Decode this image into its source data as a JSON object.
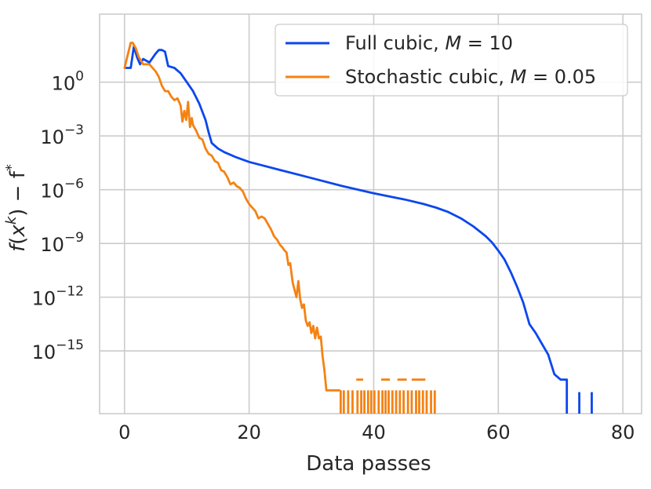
{
  "chart_data": {
    "type": "line",
    "title": "",
    "xlabel": "Data passes",
    "ylabel_parts": {
      "f": "f",
      "x": "x",
      "k": "k",
      "rest": "− f",
      "star": "*"
    },
    "xlim": [
      -4,
      83
    ],
    "ylim_log10": [
      -18.5,
      3.8
    ],
    "y_scale": "log",
    "grid": true,
    "legend_position": "top-right",
    "x_ticks": [
      {
        "value": 0,
        "label": "0"
      },
      {
        "value": 20,
        "label": "20"
      },
      {
        "value": 40,
        "label": "40"
      },
      {
        "value": 60,
        "label": "60"
      },
      {
        "value": 80,
        "label": "80"
      }
    ],
    "y_ticks": [
      {
        "exp": 0,
        "base": "10",
        "power": "0"
      },
      {
        "exp": -3,
        "base": "10",
        "power": "−3"
      },
      {
        "exp": -6,
        "base": "10",
        "power": "−6"
      },
      {
        "exp": -9,
        "base": "10",
        "power": "−9"
      },
      {
        "exp": -12,
        "base": "10",
        "power": "−12"
      },
      {
        "exp": -15,
        "base": "10",
        "power": "−15"
      }
    ],
    "series": [
      {
        "name": "Full cubic",
        "param": "M",
        "param_value": "10",
        "color": "#0b47ee",
        "points_log10": [
          [
            0.2,
            0.8
          ],
          [
            1.0,
            0.8
          ],
          [
            1.5,
            2.0
          ],
          [
            2.0,
            1.4
          ],
          [
            2.5,
            1.0
          ],
          [
            3.0,
            1.3
          ],
          [
            4.0,
            1.1
          ],
          [
            5.0,
            1.6
          ],
          [
            5.5,
            1.8
          ],
          [
            6.0,
            1.8
          ],
          [
            6.5,
            1.7
          ],
          [
            7.0,
            0.9
          ],
          [
            8.0,
            0.8
          ],
          [
            9.0,
            0.5
          ],
          [
            10.0,
            0.0
          ],
          [
            11.0,
            -0.5
          ],
          [
            12.0,
            -1.2
          ],
          [
            13.0,
            -2.1
          ],
          [
            13.5,
            -2.8
          ],
          [
            14.0,
            -3.4
          ],
          [
            15.0,
            -3.7
          ],
          [
            16.0,
            -3.9
          ],
          [
            18.0,
            -4.2
          ],
          [
            20.0,
            -4.45
          ],
          [
            25.0,
            -4.9
          ],
          [
            30.0,
            -5.35
          ],
          [
            35.0,
            -5.8
          ],
          [
            40.0,
            -6.2
          ],
          [
            45.0,
            -6.55
          ],
          [
            48.0,
            -6.8
          ],
          [
            50.0,
            -7.0
          ],
          [
            52.0,
            -7.25
          ],
          [
            54.0,
            -7.6
          ],
          [
            56.0,
            -8.05
          ],
          [
            58.0,
            -8.6
          ],
          [
            59.0,
            -8.95
          ],
          [
            60.0,
            -9.4
          ],
          [
            61.0,
            -9.9
          ],
          [
            62.0,
            -10.6
          ],
          [
            63.0,
            -11.4
          ],
          [
            64.0,
            -12.3
          ],
          [
            65.0,
            -13.5
          ],
          [
            66.0,
            -14.0
          ],
          [
            67.0,
            -14.6
          ],
          [
            68.0,
            -15.2
          ],
          [
            69.0,
            -16.3
          ],
          [
            70.0,
            -16.6
          ],
          [
            71.0,
            -16.6
          ]
        ],
        "drops": [
          [
            71.0,
            -16.6
          ],
          [
            73.0,
            -17.3
          ],
          [
            75.0,
            -17.3
          ]
        ]
      },
      {
        "name": "Stochastic cubic",
        "param": "M",
        "param_value": "0.05",
        "color": "#f48213",
        "points_log10": [
          [
            0.0,
            0.8
          ],
          [
            0.5,
            1.5
          ],
          [
            1.0,
            2.2
          ],
          [
            1.3,
            2.2
          ],
          [
            1.8,
            1.9
          ],
          [
            2.3,
            1.4
          ],
          [
            3.0,
            1.0
          ],
          [
            4.0,
            1.0
          ],
          [
            4.5,
            0.8
          ],
          [
            5.0,
            0.6
          ],
          [
            5.5,
            0.3
          ],
          [
            6.0,
            -0.2
          ],
          [
            6.5,
            -0.5
          ],
          [
            7.0,
            -0.5
          ],
          [
            7.5,
            -0.8
          ],
          [
            8.0,
            -1.0
          ],
          [
            8.5,
            -0.9
          ],
          [
            9.0,
            -1.3
          ],
          [
            9.3,
            -2.2
          ],
          [
            9.6,
            -1.6
          ],
          [
            9.9,
            -2.1
          ],
          [
            10.2,
            -1.1
          ],
          [
            10.5,
            -2.5
          ],
          [
            10.8,
            -2.0
          ],
          [
            11.0,
            -2.4
          ],
          [
            11.5,
            -2.7
          ],
          [
            12.0,
            -3.1
          ],
          [
            12.5,
            -3.2
          ],
          [
            13.0,
            -3.7
          ],
          [
            13.5,
            -4.0
          ],
          [
            14.0,
            -4.1
          ],
          [
            14.5,
            -4.4
          ],
          [
            15.0,
            -4.5
          ],
          [
            15.5,
            -4.9
          ],
          [
            16.0,
            -5.0
          ],
          [
            16.5,
            -5.3
          ],
          [
            17.0,
            -5.7
          ],
          [
            17.5,
            -5.6
          ],
          [
            18.0,
            -5.8
          ],
          [
            18.5,
            -5.9
          ],
          [
            19.0,
            -6.1
          ],
          [
            19.5,
            -6.5
          ],
          [
            20.0,
            -6.8
          ],
          [
            20.5,
            -7.0
          ],
          [
            21.0,
            -7.2
          ],
          [
            21.5,
            -7.6
          ],
          [
            22.0,
            -7.5
          ],
          [
            22.5,
            -7.6
          ],
          [
            23.0,
            -7.9
          ],
          [
            23.5,
            -8.2
          ],
          [
            24.0,
            -8.6
          ],
          [
            24.5,
            -8.8
          ],
          [
            25.0,
            -9.1
          ],
          [
            25.3,
            -9.2
          ],
          [
            25.7,
            -9.4
          ],
          [
            26.0,
            -9.5
          ],
          [
            26.3,
            -10.2
          ],
          [
            26.6,
            -10.1
          ],
          [
            27.0,
            -11.2
          ],
          [
            27.3,
            -11.6
          ],
          [
            27.6,
            -12.0
          ],
          [
            27.9,
            -11.1
          ],
          [
            28.2,
            -12.1
          ],
          [
            28.5,
            -12.6
          ],
          [
            28.8,
            -12.4
          ],
          [
            29.1,
            -13.3
          ],
          [
            29.4,
            -13.6
          ],
          [
            29.7,
            -13.4
          ],
          [
            30.0,
            -14.0
          ],
          [
            30.3,
            -13.6
          ],
          [
            30.6,
            -14.3
          ],
          [
            30.9,
            -13.7
          ],
          [
            31.2,
            -14.3
          ],
          [
            31.5,
            -14.2
          ],
          [
            31.8,
            -15.3
          ],
          [
            32.1,
            -16.1
          ],
          [
            32.4,
            -17.2
          ],
          [
            33.0,
            -17.2
          ],
          [
            34.5,
            -17.2
          ]
        ],
        "drops": [
          [
            34.7,
            -17.2
          ],
          [
            35.2,
            -17.2
          ],
          [
            35.9,
            -17.2
          ],
          [
            36.6,
            -17.2
          ],
          [
            37.4,
            -17.2
          ],
          [
            38.0,
            -17.2
          ],
          [
            38.5,
            -17.2
          ],
          [
            39.1,
            -17.2
          ],
          [
            39.6,
            -17.2
          ],
          [
            40.1,
            -17.2
          ],
          [
            40.8,
            -17.2
          ],
          [
            41.4,
            -17.2
          ],
          [
            41.9,
            -17.2
          ],
          [
            42.4,
            -17.2
          ],
          [
            43.0,
            -17.2
          ],
          [
            43.6,
            -17.2
          ],
          [
            44.2,
            -17.2
          ],
          [
            44.8,
            -17.2
          ],
          [
            45.5,
            -17.2
          ],
          [
            46.1,
            -17.2
          ],
          [
            46.8,
            -17.2
          ],
          [
            47.3,
            -17.2
          ],
          [
            47.9,
            -17.2
          ],
          [
            48.5,
            -17.2
          ],
          [
            49.2,
            -17.2
          ],
          [
            49.8,
            -17.2
          ]
        ],
        "flat_segments": [
          [
            37.2,
            38.3,
            -16.6
          ],
          [
            41.2,
            42.6,
            -16.6
          ],
          [
            43.8,
            45.3,
            -16.6
          ],
          [
            46.1,
            48.3,
            -16.6
          ]
        ]
      }
    ]
  }
}
